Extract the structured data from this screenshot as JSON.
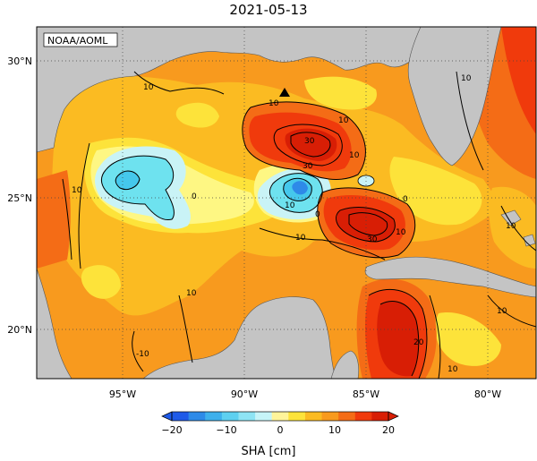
{
  "title": "2021-05-13",
  "credit": "NOAA/AOML",
  "map": {
    "lon_range": [
      -98,
      -77.5
    ],
    "lat_range": [
      18,
      31
    ],
    "lon_ticks": [
      {
        "value": -95,
        "label": "95°W"
      },
      {
        "value": -90,
        "label": "90°W"
      },
      {
        "value": -85,
        "label": "85°W"
      },
      {
        "value": -80,
        "label": "80°W"
      }
    ],
    "lat_ticks": [
      {
        "value": 30,
        "label": "30°N"
      },
      {
        "value": 25,
        "label": "25°N"
      },
      {
        "value": 20,
        "label": "20°N"
      }
    ],
    "contour_labels": [
      "10",
      "10",
      "10",
      "10",
      "30",
      "30",
      "0",
      "10",
      "10",
      "0",
      "0",
      "10",
      "30",
      "20",
      "10",
      "10",
      "-10",
      "10",
      "10",
      "10",
      "10"
    ],
    "colors": {
      "land": "#c4c4c4",
      "dark_red": "#d81e05",
      "red": "#f03a0c",
      "orange_red": "#f46c16",
      "orange": "#f89a1e",
      "light_orange": "#fbbb22",
      "yellow": "#fde33a",
      "pale_yellow": "#fef783",
      "pale_cyan": "#c9f3f6",
      "cyan": "#6ee2ef",
      "light_blue": "#45c8ec"
    }
  },
  "colorbar": {
    "label": "SHA [cm]",
    "ticks": [
      "−20",
      "−10",
      "0",
      "10",
      "20"
    ],
    "colors": [
      "#1e5ae8",
      "#2e8ae8",
      "#3eb0ec",
      "#5ed0f0",
      "#8ee4f4",
      "#c6f4f8",
      "#fff49a",
      "#fde33a",
      "#fbbb22",
      "#f89a1e",
      "#f46c16",
      "#f03a0c",
      "#d81e05"
    ]
  }
}
